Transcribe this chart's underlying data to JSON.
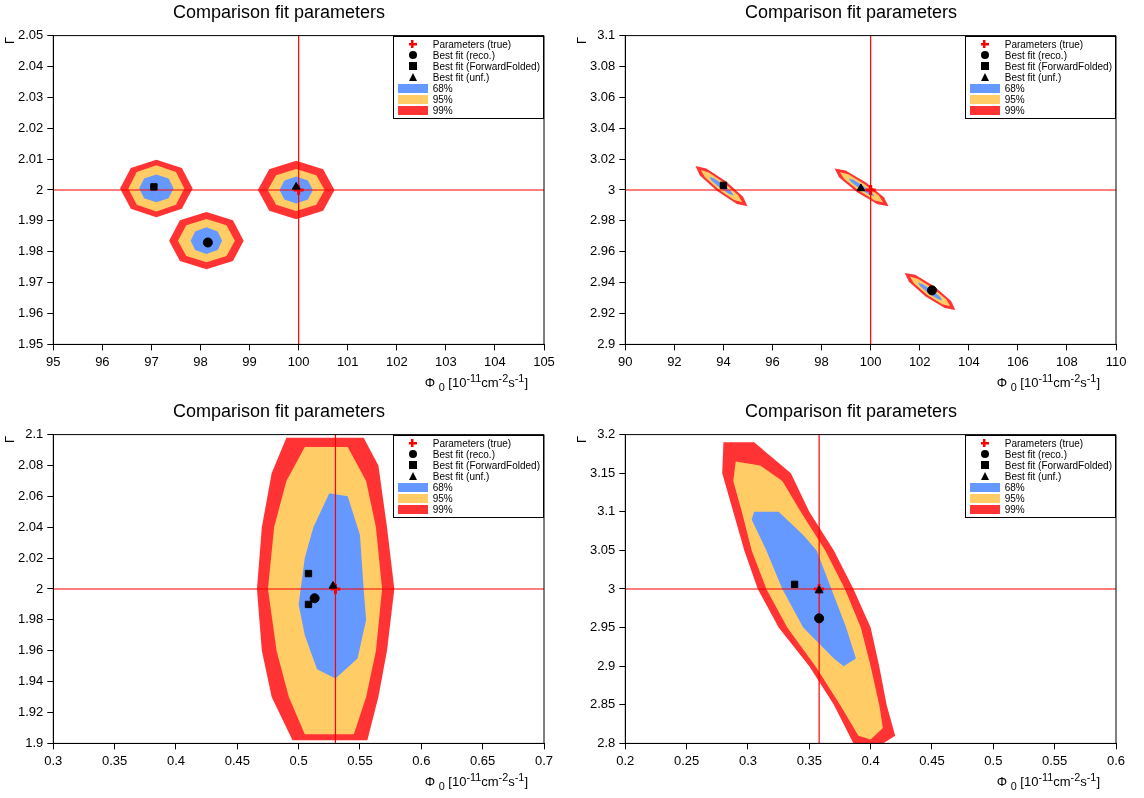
{
  "chart_data": [
    {
      "type": "scatter",
      "title": "Comparison fit parameters",
      "xlabel": "Φ $_{0}$ [10$^{-11}$cm$^{-2}$s$^{-1}$]",
      "ylabel": "Γ",
      "xlim": [
        95,
        105
      ],
      "ylim": [
        1.95,
        2.05
      ],
      "xticks": [
        95,
        96,
        97,
        98,
        99,
        100,
        101,
        102,
        103,
        104,
        105
      ],
      "yticks": [
        1.95,
        1.96,
        1.97,
        1.98,
        1.99,
        2,
        2.01,
        2.02,
        2.03,
        2.04,
        2.05
      ],
      "grid": false,
      "legend": "top right",
      "ref_lines": [
        {
          "axis": "x",
          "value": 100,
          "color": "#ff0000"
        },
        {
          "axis": "y",
          "value": 2,
          "color": "#ff0000"
        }
      ],
      "series": [
        {
          "name": "Parameters (true)",
          "type": "scatter",
          "marker": "cross",
          "color": "#ff0000",
          "x": [
            100
          ],
          "values": [
            2
          ]
        },
        {
          "name": "Best fit (reco.)",
          "type": "scatter",
          "marker": "circle",
          "color": "#000000",
          "x": [
            98.15
          ],
          "values": [
            1.983
          ]
        },
        {
          "name": "Best fit (ForwardFolded)",
          "type": "scatter",
          "marker": "square",
          "color": "#000000",
          "x": [
            97.05
          ],
          "values": [
            2.001
          ]
        },
        {
          "name": "Best fit (unf.)",
          "type": "scatter",
          "marker": "triangle",
          "color": "#000000",
          "x": [
            99.95
          ],
          "values": [
            2.001
          ]
        },
        {
          "name": "68%",
          "type": "area",
          "color": "#6699ff",
          "x": [
            97.45,
            97.35,
            97.1,
            96.85,
            96.75,
            96.85,
            97.1,
            97.35
          ],
          "values": [
            2.0005,
            2.0037,
            2.005,
            2.0037,
            2.0005,
            1.9973,
            1.996,
            1.9973
          ]
        },
        {
          "type": "area",
          "color": "#6699ff",
          "x": [
            98.44,
            98.35,
            98.12,
            97.89,
            97.8,
            97.89,
            98.12,
            98.35
          ],
          "values": [
            1.9836,
            1.9866,
            1.9879,
            1.9866,
            1.9836,
            1.9806,
            1.9793,
            1.9806
          ]
        },
        {
          "type": "area",
          "color": "#6699ff",
          "x": [
            100.29,
            100.19,
            99.95,
            99.71,
            99.61,
            99.71,
            99.95,
            100.19
          ],
          "values": [
            2.0,
            2.0031,
            2.0044,
            2.0031,
            2.0,
            1.9969,
            1.9956,
            1.9969
          ]
        },
        {
          "name": "95%",
          "type": "area",
          "color": "#ffcc66",
          "x": [
            97.67,
            97.5,
            97.1,
            96.7,
            96.53,
            96.7,
            97.1,
            97.5
          ],
          "values": [
            2.0005,
            2.0058,
            2.008,
            2.0058,
            2.0005,
            1.9952,
            1.993,
            1.9952
          ]
        },
        {
          "type": "area",
          "color": "#ffcc66",
          "x": [
            98.7,
            98.53,
            98.12,
            97.71,
            97.54,
            97.71,
            98.12,
            98.53
          ],
          "values": [
            1.9836,
            1.9886,
            1.9906,
            1.9886,
            1.9836,
            1.9786,
            1.9766,
            1.9786
          ]
        },
        {
          "type": "area",
          "color": "#ffcc66",
          "x": [
            100.53,
            100.36,
            99.95,
            99.54,
            99.37,
            99.54,
            99.95,
            100.36
          ],
          "values": [
            2.0,
            2.0048,
            2.0068,
            2.0048,
            2.0,
            1.9952,
            1.9932,
            1.9952
          ]
        },
        {
          "name": "99%",
          "type": "area",
          "color": "#ff3333",
          "x": [
            97.84,
            97.62,
            97.1,
            96.58,
            96.36,
            96.58,
            97.1,
            97.62
          ],
          "values": [
            2.0005,
            2.0071,
            2.0098,
            2.0071,
            2.0005,
            1.9939,
            1.9912,
            1.9939
          ]
        },
        {
          "type": "area",
          "color": "#ff3333",
          "x": [
            98.88,
            98.66,
            98.12,
            97.58,
            97.36,
            97.58,
            98.12,
            98.66
          ],
          "values": [
            1.9836,
            1.9902,
            1.9929,
            1.9902,
            1.9836,
            1.977,
            1.9743,
            1.977
          ]
        },
        {
          "type": "area",
          "color": "#ff3333",
          "x": [
            100.73,
            100.5,
            99.95,
            99.4,
            99.17,
            99.4,
            99.95,
            100.5
          ],
          "values": [
            2.0,
            2.0067,
            2.0095,
            2.0067,
            2.0,
            1.9933,
            1.9905,
            1.9933
          ]
        }
      ]
    },
    {
      "type": "scatter",
      "title": "Comparison fit parameters",
      "xlabel": "Φ $_{0}$ [10$^{-11}$cm$^{-2}$s$^{-1}$]",
      "ylabel": "Γ",
      "xlim": [
        90,
        110
      ],
      "ylim": [
        2.9,
        3.1
      ],
      "xticks": [
        90,
        92,
        94,
        96,
        98,
        100,
        102,
        104,
        106,
        108,
        110
      ],
      "yticks": [
        2.9,
        2.92,
        2.94,
        2.96,
        2.98,
        3,
        3.02,
        3.04,
        3.06,
        3.08,
        3.1
      ],
      "grid": false,
      "legend": "top right",
      "ref_lines": [
        {
          "axis": "x",
          "value": 100,
          "color": "#ff0000"
        },
        {
          "axis": "y",
          "value": 3,
          "color": "#ff0000"
        }
      ],
      "series": [
        {
          "name": "Parameters (true)",
          "type": "scatter",
          "marker": "cross",
          "color": "#ff0000",
          "x": [
            100
          ],
          "values": [
            3
          ]
        },
        {
          "name": "Best fit (reco.)",
          "type": "scatter",
          "marker": "circle",
          "color": "#000000",
          "x": [
            102.5
          ],
          "values": [
            2.935
          ]
        },
        {
          "name": "Best fit (ForwardFolded)",
          "type": "scatter",
          "marker": "square",
          "color": "#000000",
          "x": [
            94
          ],
          "values": [
            3.003
          ]
        },
        {
          "name": "Best fit (unf.)",
          "type": "scatter",
          "marker": "triangle",
          "color": "#000000",
          "x": [
            99.6
          ],
          "values": [
            3.001
          ]
        },
        {
          "name": "68%",
          "type": "area",
          "color": "#6699ff",
          "x": [
            94.42,
            94.32,
            93.98,
            93.61,
            93.42,
            93.52,
            93.86,
            94.23
          ],
          "values": [
            2.9964,
            2.999,
            3.0036,
            3.0076,
            3.0086,
            3.006,
            3.0014,
            2.9974
          ]
        },
        {
          "type": "area",
          "color": "#6699ff",
          "x": [
            100.15,
            100.04,
            99.69,
            99.3,
            99.11,
            99.22,
            99.57,
            99.96
          ],
          "values": [
            2.9959,
            2.9984,
            3.0028,
            3.0066,
            3.0075,
            3.005,
            3.0006,
            2.9968
          ]
        },
        {
          "type": "area",
          "color": "#6699ff",
          "x": [
            102.92,
            102.82,
            102.48,
            102.11,
            101.92,
            102.02,
            102.36,
            102.73
          ],
          "values": [
            2.9285,
            2.931,
            2.9354,
            2.9392,
            2.9401,
            2.9376,
            2.9332,
            2.9294
          ]
        },
        {
          "name": "95%",
          "type": "area",
          "color": "#ffcc66",
          "x": [
            94.77,
            94.6,
            94.04,
            93.4,
            93.07,
            93.24,
            93.8,
            94.44
          ],
          "values": [
            2.9921,
            2.9966,
            3.0046,
            3.0114,
            3.0129,
            3.0084,
            3.0004,
            2.9936
          ]
        },
        {
          "type": "area",
          "color": "#ffcc66",
          "x": [
            100.51,
            100.34,
            99.75,
            99.09,
            98.75,
            98.92,
            99.51,
            100.17
          ],
          "values": [
            2.9919,
            2.9962,
            3.0038,
            3.0102,
            3.0115,
            3.0072,
            2.9996,
            2.9932
          ]
        },
        {
          "type": "area",
          "color": "#ffcc66",
          "x": [
            103.24,
            103.09,
            102.54,
            101.92,
            101.6,
            101.76,
            102.3,
            102.92
          ],
          "values": [
            2.9247,
            2.929,
            2.9364,
            2.9426,
            2.9439,
            2.9396,
            2.9322,
            2.926
          ]
        },
        {
          "name": "99%",
          "type": "area",
          "color": "#ff3333",
          "x": [
            94.98,
            94.8,
            94.1,
            93.3,
            92.86,
            93.04,
            93.74,
            94.55
          ],
          "values": [
            2.9895,
            2.9956,
            3.0057,
            3.014,
            3.0155,
            3.0094,
            2.9993,
            2.991
          ]
        },
        {
          "type": "area",
          "color": "#ff3333",
          "x": [
            100.73,
            100.54,
            99.81,
            98.98,
            98.53,
            98.72,
            99.45,
            100.28
          ],
          "values": [
            2.9895,
            2.9953,
            3.0049,
            3.0127,
            3.0139,
            3.0081,
            2.9985,
            2.9907
          ]
        },
        {
          "type": "area",
          "color": "#ff3333",
          "x": [
            103.45,
            103.28,
            102.6,
            101.82,
            101.39,
            101.56,
            102.24,
            103.02
          ],
          "values": [
            2.9223,
            2.9281,
            2.9375,
            2.9451,
            2.9463,
            2.9405,
            2.9311,
            2.9235
          ]
        }
      ]
    },
    {
      "type": "scatter",
      "title": "Comparison fit parameters",
      "xlabel": "Φ $_{0}$ [10$^{-11}$cm$^{-2}$s$^{-1}$]",
      "ylabel": "Γ",
      "xlim": [
        0.3,
        0.7
      ],
      "ylim": [
        1.9,
        2.1
      ],
      "xticks": [
        0.3,
        0.35,
        0.4,
        0.45,
        0.5,
        0.55,
        0.6,
        0.65,
        0.7
      ],
      "yticks": [
        1.9,
        1.92,
        1.94,
        1.96,
        1.98,
        2,
        2.02,
        2.04,
        2.06,
        2.08,
        2.1
      ],
      "grid": false,
      "legend": "top right",
      "ref_lines": [
        {
          "axis": "x",
          "value": 0.53,
          "color": "#ff0000"
        },
        {
          "axis": "y",
          "value": 2,
          "color": "#ff0000"
        }
      ],
      "series": [
        {
          "name": "Parameters (true)",
          "type": "scatter",
          "marker": "cross",
          "color": "#ff0000",
          "x": [
            0.53
          ],
          "values": [
            2
          ]
        },
        {
          "name": "Best fit (reco.)",
          "type": "scatter",
          "marker": "circle",
          "color": "#000000",
          "x": [
            0.513
          ],
          "values": [
            1.994
          ]
        },
        {
          "name": "Best fit (ForwardFolded)",
          "type": "scatter",
          "marker": "square",
          "color": "#000000",
          "x": [
            0.508,
            0.508
          ],
          "values": [
            2.01,
            1.99
          ]
        },
        {
          "name": "Best fit (unf.)",
          "type": "scatter",
          "marker": "triangle",
          "color": "#000000",
          "x": [
            0.528
          ],
          "values": [
            2.002
          ]
        },
        {
          "name": "68%",
          "type": "area",
          "color": "#6699ff",
          "x": [
            0.525,
            0.54,
            0.55,
            0.553,
            0.555,
            0.548,
            0.53,
            0.515,
            0.505,
            0.5,
            0.505,
            0.512
          ],
          "values": [
            2.062,
            2.06,
            2.035,
            2.0,
            1.98,
            1.955,
            1.942,
            1.948,
            1.97,
            1.99,
            2.02,
            2.04
          ]
        },
        {
          "name": "95%",
          "type": "area",
          "color": "#ffcc66",
          "x": [
            0.505,
            0.54,
            0.555,
            0.563,
            0.568,
            0.563,
            0.555,
            0.545,
            0.505,
            0.492,
            0.482,
            0.475,
            0.48,
            0.49
          ],
          "values": [
            2.092,
            2.092,
            2.07,
            2.04,
            2.0,
            1.96,
            1.93,
            1.906,
            1.906,
            1.93,
            1.96,
            2.0,
            2.04,
            2.07
          ]
        },
        {
          "name": "99%",
          "type": "area",
          "color": "#ff3333",
          "x": [
            0.49,
            0.553,
            0.565,
            0.572,
            0.578,
            0.572,
            0.565,
            0.556,
            0.495,
            0.478,
            0.47,
            0.466,
            0.47,
            0.478
          ],
          "values": [
            2.098,
            2.098,
            2.08,
            2.04,
            2.0,
            1.96,
            1.93,
            1.902,
            1.902,
            1.93,
            1.96,
            2.0,
            2.04,
            2.075
          ]
        }
      ]
    },
    {
      "type": "scatter",
      "title": "Comparison fit parameters",
      "xlabel": "Φ $_{0}$ [10$^{-11}$cm$^{-2}$s$^{-1}$]",
      "ylabel": "Γ",
      "xlim": [
        0.2,
        0.6
      ],
      "ylim": [
        2.8,
        3.2
      ],
      "xticks": [
        0.2,
        0.25,
        0.3,
        0.35,
        0.4,
        0.45,
        0.5,
        0.55,
        0.6
      ],
      "yticks": [
        2.8,
        2.85,
        2.9,
        2.95,
        3,
        3.05,
        3.1,
        3.15,
        3.2
      ],
      "grid": false,
      "legend": "top right",
      "ref_lines": [
        {
          "axis": "x",
          "value": 0.358,
          "color": "#ff0000"
        },
        {
          "axis": "y",
          "value": 3,
          "color": "#ff0000"
        }
      ],
      "series": [
        {
          "name": "Parameters (true)",
          "type": "scatter",
          "marker": "cross",
          "color": "#ff0000",
          "x": [
            0.358
          ],
          "values": [
            3
          ]
        },
        {
          "name": "Best fit (reco.)",
          "type": "scatter",
          "marker": "circle",
          "color": "#000000",
          "x": [
            0.358
          ],
          "values": [
            2.962
          ]
        },
        {
          "name": "Best fit (ForwardFolded)",
          "type": "scatter",
          "marker": "square",
          "color": "#000000",
          "x": [
            0.338
          ],
          "values": [
            3.006
          ]
        },
        {
          "name": "Best fit (unf.)",
          "type": "scatter",
          "marker": "triangle",
          "color": "#000000",
          "x": [
            0.358
          ],
          "values": [
            2.998
          ]
        },
        {
          "name": "68%",
          "type": "area",
          "color": "#6699ff",
          "x": [
            0.305,
            0.325,
            0.345,
            0.356,
            0.368,
            0.38,
            0.388,
            0.378,
            0.37,
            0.345,
            0.328,
            0.315,
            0.303
          ],
          "values": [
            3.1,
            3.1,
            3.07,
            3.05,
            3.0,
            2.95,
            2.91,
            2.9,
            2.91,
            2.95,
            3.0,
            3.05,
            3.09
          ]
        },
        {
          "name": "95%",
          "type": "area",
          "color": "#ffcc66",
          "x": [
            0.29,
            0.31,
            0.328,
            0.343,
            0.363,
            0.379,
            0.392,
            0.4,
            0.407,
            0.41,
            0.4,
            0.39,
            0.375,
            0.355,
            0.332,
            0.315,
            0.303,
            0.295,
            0.288
          ],
          "values": [
            3.165,
            3.16,
            3.14,
            3.1,
            3.05,
            3.0,
            2.95,
            2.9,
            2.85,
            2.82,
            2.805,
            2.81,
            2.85,
            2.9,
            2.95,
            3.0,
            3.05,
            3.1,
            3.14
          ]
        },
        {
          "name": "99%",
          "type": "area",
          "color": "#ff3333",
          "x": [
            0.28,
            0.305,
            0.32,
            0.335,
            0.35,
            0.37,
            0.386,
            0.4,
            0.407,
            0.413,
            0.42,
            0.41,
            0.386,
            0.37,
            0.35,
            0.325,
            0.308,
            0.297,
            0.288,
            0.279
          ],
          "values": [
            3.19,
            3.19,
            3.17,
            3.15,
            3.1,
            3.05,
            3.0,
            2.95,
            2.9,
            2.85,
            2.81,
            2.8,
            2.8,
            2.85,
            2.9,
            2.95,
            3.0,
            3.05,
            3.1,
            3.15
          ]
        }
      ]
    }
  ]
}
